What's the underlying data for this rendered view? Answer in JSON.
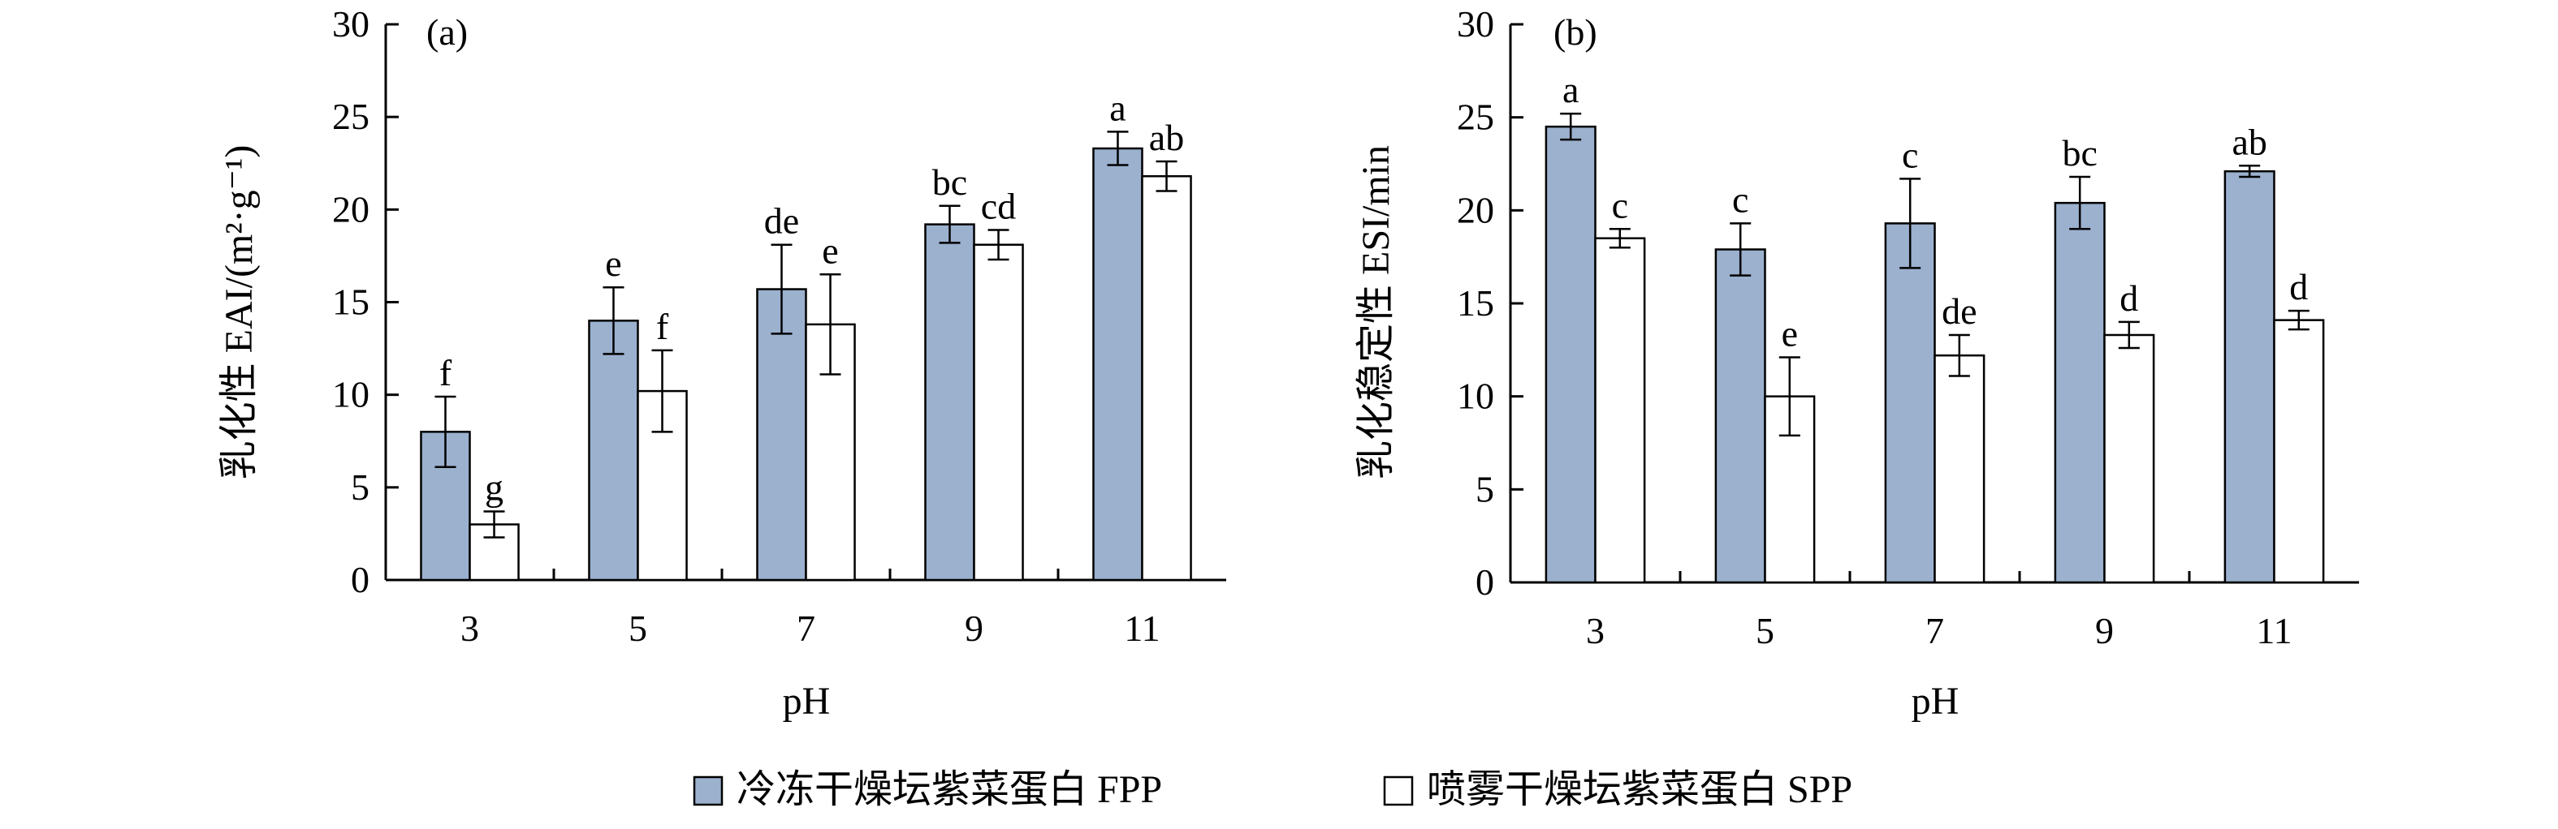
{
  "colors": {
    "fpp": "#9bb1ce",
    "spp": "#ffffff",
    "outline": "#000000"
  },
  "legend": {
    "items": [
      {
        "label": "冷冻干燥坛紫菜蛋白 FPP",
        "color": "#9bb1ce"
      },
      {
        "label": "喷雾干燥坛紫菜蛋白 SPP",
        "color": "#ffffff"
      }
    ]
  },
  "chart_data": [
    {
      "type": "bar",
      "panel_label": "(a)",
      "xlabel": "pH",
      "ylabel": "乳化性 EAI/(m²·g⁻¹)",
      "ylim": [
        0,
        30
      ],
      "yticks": [
        0,
        5,
        10,
        15,
        20,
        25,
        30
      ],
      "categories": [
        "3",
        "5",
        "7",
        "9",
        "11"
      ],
      "series": [
        {
          "name": "冷冻干燥坛紫菜蛋白 FPP",
          "values": [
            8.0,
            14.0,
            15.7,
            19.2,
            23.3
          ],
          "errors": [
            1.9,
            1.8,
            2.4,
            1.0,
            0.9
          ],
          "labels": [
            "f",
            "e",
            "de",
            "bc",
            "a"
          ]
        },
        {
          "name": "喷雾干燥坛紫菜蛋白 SPP",
          "values": [
            3.0,
            10.2,
            13.8,
            18.1,
            21.8
          ],
          "errors": [
            0.7,
            2.2,
            2.7,
            0.8,
            0.8
          ],
          "labels": [
            "g",
            "f",
            "e",
            "cd",
            "ab"
          ]
        }
      ]
    },
    {
      "type": "bar",
      "panel_label": "(b)",
      "xlabel": "pH",
      "ylabel": "乳化稳定性 ESI/min",
      "ylim": [
        0,
        30
      ],
      "yticks": [
        0,
        5,
        10,
        15,
        20,
        25,
        30
      ],
      "categories": [
        "3",
        "5",
        "7",
        "9",
        "11"
      ],
      "series": [
        {
          "name": "冷冻干燥坛紫菜蛋白 FPP",
          "values": [
            24.5,
            17.9,
            19.3,
            20.4,
            22.1
          ],
          "errors": [
            0.7,
            1.4,
            2.4,
            1.4,
            0.3
          ],
          "labels": [
            "a",
            "c",
            "c",
            "bc",
            "ab"
          ]
        },
        {
          "name": "喷雾干燥坛紫菜蛋白 SPP",
          "values": [
            18.5,
            10.0,
            12.2,
            13.3,
            14.1
          ],
          "errors": [
            0.5,
            2.1,
            1.1,
            0.7,
            0.5
          ],
          "labels": [
            "c",
            "e",
            "de",
            "d",
            "d"
          ]
        }
      ]
    }
  ]
}
